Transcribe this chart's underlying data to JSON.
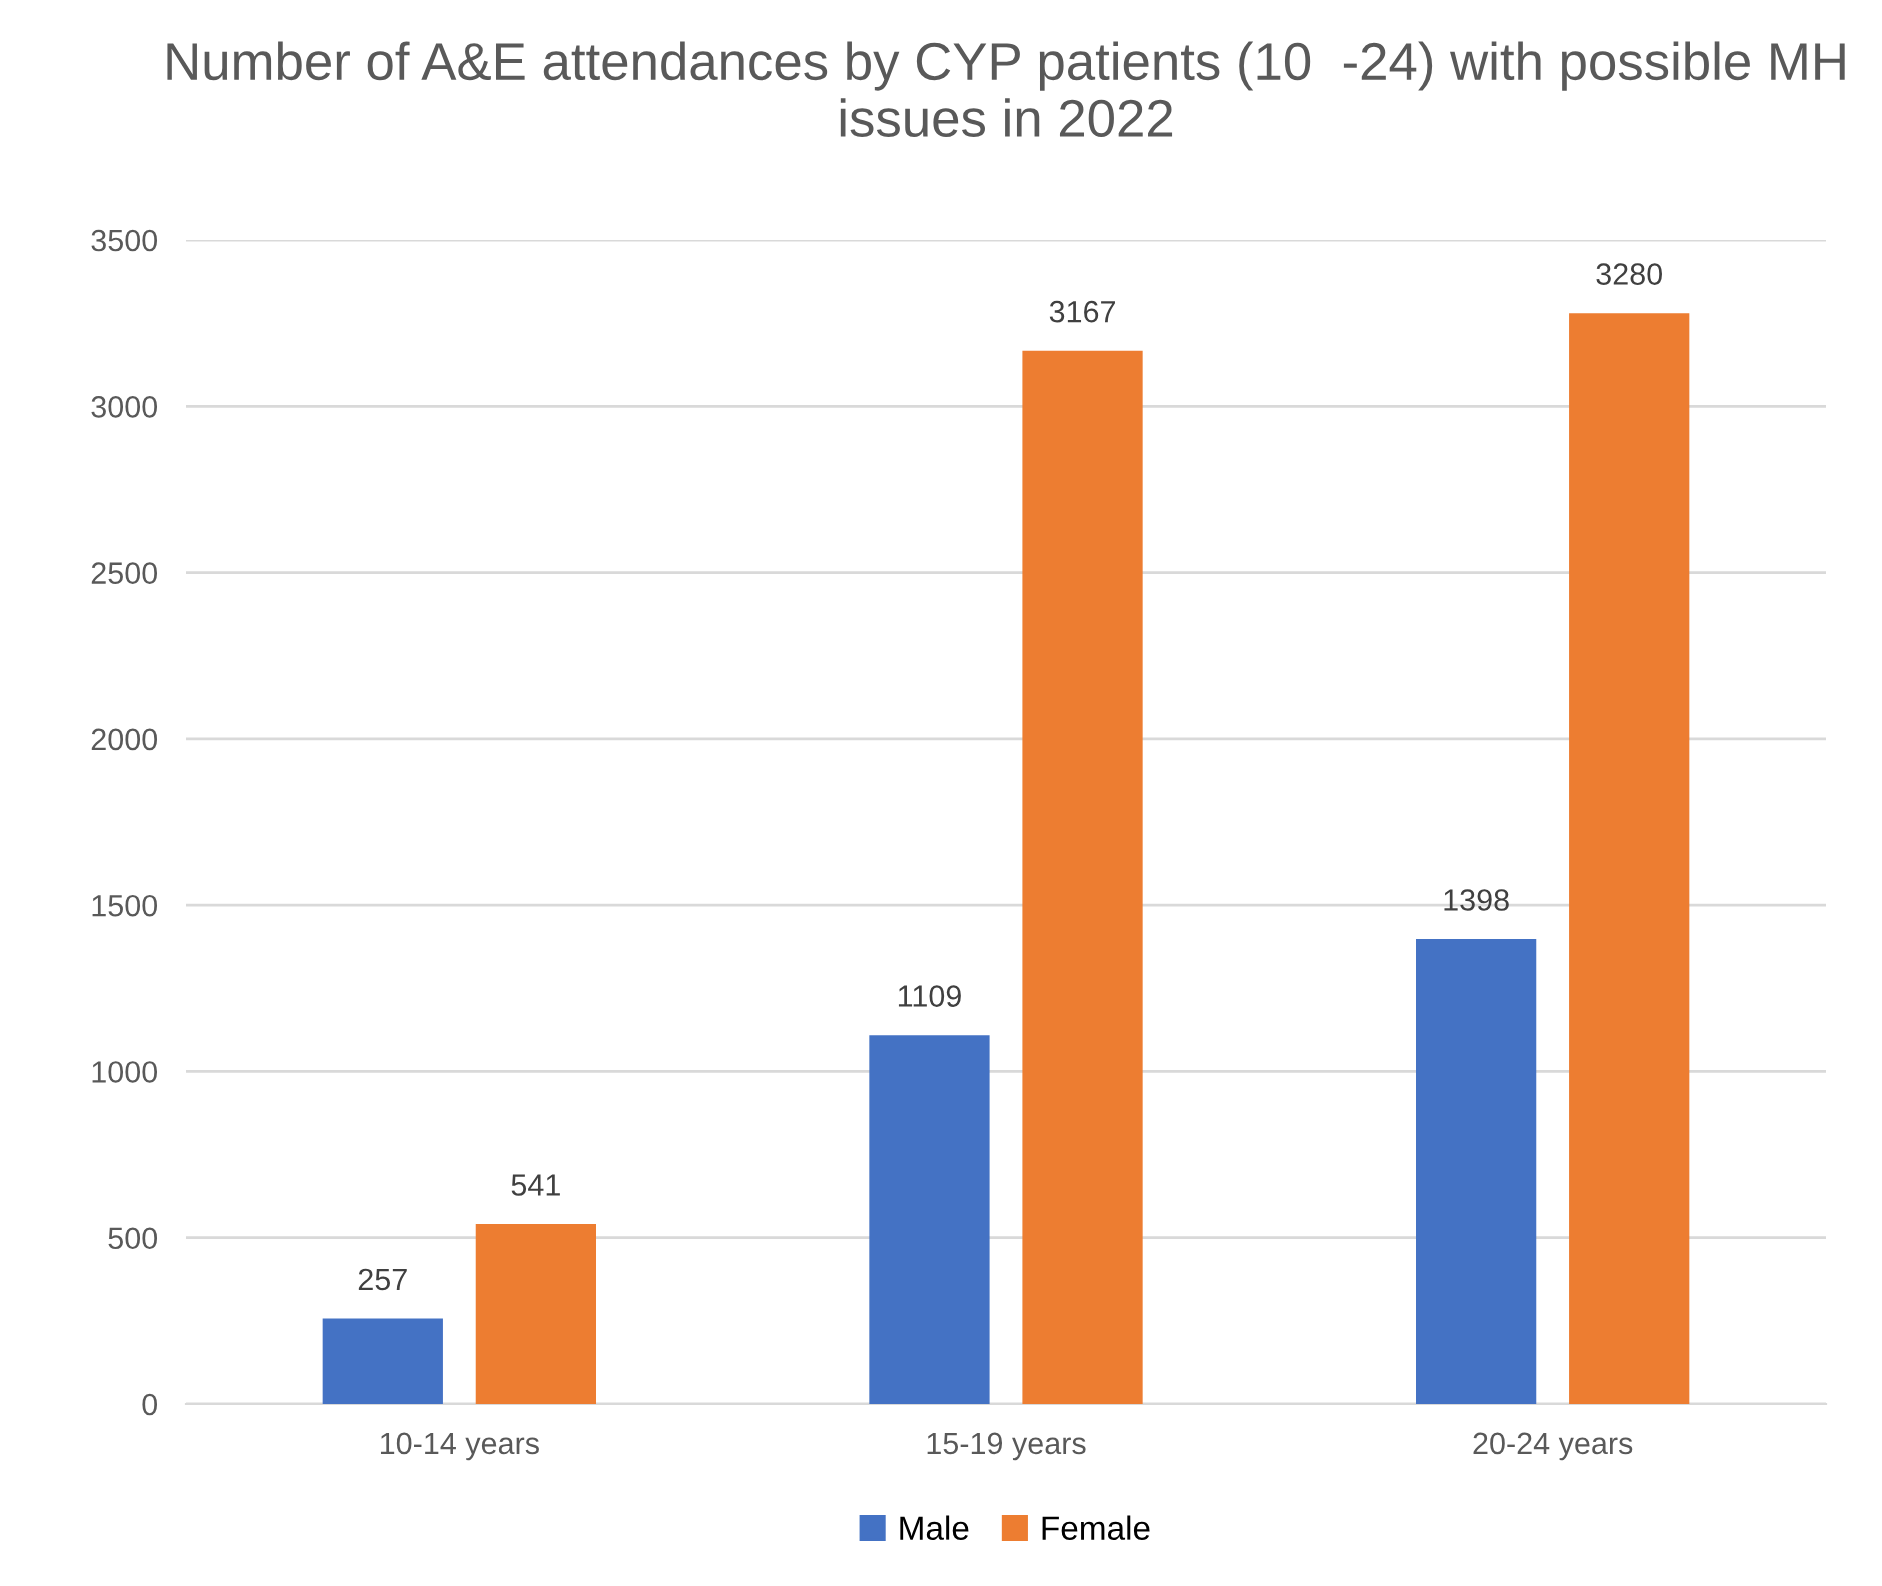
{
  "chart_data": {
    "type": "bar",
    "title": "Number of A&E attendances by CYP patients (10  -24) with possible MH issues in 2022",
    "categories": [
      "10-14 years",
      "15-19 years",
      "20-24 years"
    ],
    "series": [
      {
        "name": "Male",
        "color": "#4472c4",
        "values": [
          257,
          1109,
          1398
        ]
      },
      {
        "name": "Female",
        "color": "#ed7d31",
        "values": [
          541,
          3167,
          3280
        ]
      }
    ],
    "ylim": [
      0,
      3500
    ],
    "yticks": [
      0,
      500,
      1000,
      1500,
      2000,
      2500,
      3000,
      3500
    ],
    "grid": "y",
    "legend": "bottom",
    "data_labels": true
  }
}
